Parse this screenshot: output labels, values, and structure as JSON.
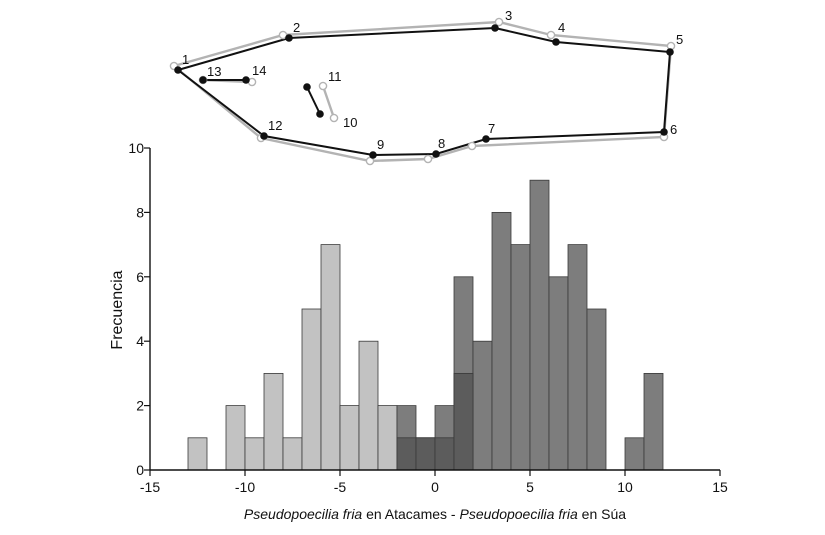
{
  "chart_data": [
    {
      "type": "diagram",
      "description_labels": [
        "1",
        "2",
        "3",
        "4",
        "5",
        "6",
        "7",
        "8",
        "9",
        "10",
        "11",
        "12",
        "13",
        "14"
      ],
      "landmarks": [
        {
          "id": "1",
          "mean": [
            178,
            70
          ],
          "alt": [
            174,
            66
          ]
        },
        {
          "id": "2",
          "mean": [
            289,
            38
          ],
          "alt": [
            283,
            35
          ]
        },
        {
          "id": "3",
          "mean": [
            495,
            28
          ],
          "alt": [
            499,
            22
          ]
        },
        {
          "id": "4",
          "mean": [
            556,
            42
          ],
          "alt": [
            551,
            35
          ]
        },
        {
          "id": "5",
          "mean": [
            670,
            52
          ],
          "alt": [
            671,
            46
          ]
        },
        {
          "id": "6",
          "mean": [
            664,
            132
          ],
          "alt": [
            664,
            137
          ]
        },
        {
          "id": "7",
          "mean": [
            486,
            139
          ],
          "alt": [
            472,
            146
          ]
        },
        {
          "id": "8",
          "mean": [
            436,
            154
          ],
          "alt": [
            428,
            159
          ]
        },
        {
          "id": "9",
          "mean": [
            373,
            155
          ],
          "alt": [
            370,
            161
          ]
        },
        {
          "id": "10",
          "mean": [
            320,
            114
          ],
          "alt": [
            334,
            118
          ]
        },
        {
          "id": "11",
          "mean": [
            307,
            87
          ],
          "alt": [
            323,
            86
          ]
        },
        {
          "id": "12",
          "mean": [
            264,
            136
          ],
          "alt": [
            261,
            138
          ]
        },
        {
          "id": "13",
          "mean": [
            203,
            80
          ],
          "alt": [
            203,
            80
          ]
        },
        {
          "id": "14",
          "mean": [
            246,
            80
          ],
          "alt": [
            252,
            82
          ]
        }
      ],
      "outline_order": [
        "1",
        "2",
        "3",
        "4",
        "5",
        "6",
        "7",
        "8",
        "9",
        "12",
        "1"
      ],
      "extra_segments": [
        [
          "13",
          "14"
        ],
        [
          "10",
          "11"
        ]
      ],
      "colors": {
        "mean": "#111111",
        "alt": "#b3b3b3"
      }
    },
    {
      "type": "bar",
      "chart_subtype": "overlapping histogram",
      "ylabel": "Frecuencia",
      "xlabel_parts": [
        {
          "text": "Pseudopoecilia fria",
          "italic": true
        },
        {
          "text": " en Atacames - ",
          "italic": false
        },
        {
          "text": "Pseudopoecilia fria",
          "italic": true
        },
        {
          "text": " en Súa",
          "italic": false
        }
      ],
      "xlim": [
        -15,
        15
      ],
      "ylim": [
        0,
        10
      ],
      "xticks": [
        -15,
        -10,
        -5,
        0,
        5,
        10,
        15
      ],
      "yticks": [
        0,
        2,
        4,
        6,
        8,
        10
      ],
      "bin_width": 1,
      "grid": false,
      "colors": {
        "light": "#c2c2c2",
        "dark": "#7d7d7d",
        "overlap": "#5c5c5c",
        "edge": "#3a3a3a"
      },
      "series": [
        {
          "style": "light",
          "bins": [
            {
              "x0": -13,
              "value": 1
            },
            {
              "x0": -11,
              "value": 2
            },
            {
              "x0": -10,
              "value": 1
            },
            {
              "x0": -9,
              "value": 3
            },
            {
              "x0": -8,
              "value": 1
            },
            {
              "x0": -7,
              "value": 5
            },
            {
              "x0": -6,
              "value": 7
            },
            {
              "x0": -5,
              "value": 2
            },
            {
              "x0": -4,
              "value": 4
            },
            {
              "x0": -3,
              "value": 2
            },
            {
              "x0": -2,
              "value": 1
            },
            {
              "x0": -1,
              "value": 1
            },
            {
              "x0": 0,
              "value": 1
            },
            {
              "x0": 1,
              "value": 3
            }
          ]
        },
        {
          "style": "dark",
          "bins": [
            {
              "x0": -2,
              "value": 2
            },
            {
              "x0": -1,
              "value": 1
            },
            {
              "x0": 0,
              "value": 2
            },
            {
              "x0": 1,
              "value": 6
            },
            {
              "x0": 2,
              "value": 4
            },
            {
              "x0": 3,
              "value": 8
            },
            {
              "x0": 4,
              "value": 7
            },
            {
              "x0": 5,
              "value": 9
            },
            {
              "x0": 6,
              "value": 6
            },
            {
              "x0": 7,
              "value": 7
            },
            {
              "x0": 8,
              "value": 5
            },
            {
              "x0": 10,
              "value": 1
            },
            {
              "x0": 11,
              "value": 3
            }
          ]
        }
      ]
    }
  ]
}
